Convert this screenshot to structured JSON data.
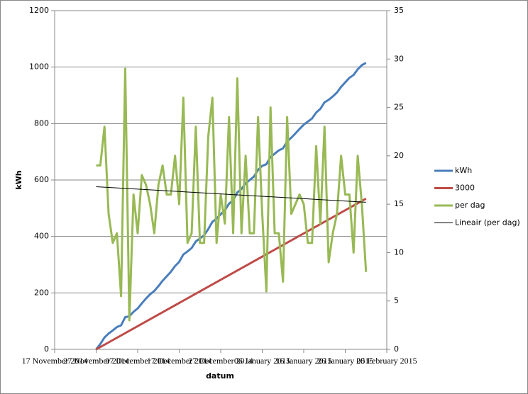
{
  "chart_data": {
    "type": "line",
    "y_label": "kWh",
    "x_label": "datum",
    "xlim": [
      "2014-11-17",
      "2015-02-05"
    ],
    "xticks": [
      {
        "value": "2014-11-17",
        "label": "17 November 2014"
      },
      {
        "value": "2014-11-27",
        "label": "27 November 2014"
      },
      {
        "value": "2014-12-07",
        "label": "07 December 2014"
      },
      {
        "value": "2014-12-17",
        "label": "17 December 2014"
      },
      {
        "value": "2014-12-27",
        "label": "27 December 2014"
      },
      {
        "value": "2015-01-06",
        "label": "06 January 2015"
      },
      {
        "value": "2015-01-16",
        "label": "16 January 2015"
      },
      {
        "value": "2015-01-26",
        "label": "26 January 2015"
      },
      {
        "value": "2015-02-05",
        "label": "05 February 2015"
      }
    ],
    "ylim": [
      0,
      1200
    ],
    "yticks": [
      0,
      200,
      400,
      600,
      800,
      1000,
      1200
    ],
    "y2lim": [
      0,
      35
    ],
    "y2ticks": [
      0,
      5,
      10,
      15,
      20,
      25,
      30,
      35
    ],
    "grid": true,
    "legend": "right",
    "x": [
      "2014-11-27",
      "2014-11-28",
      "2014-11-29",
      "2014-11-30",
      "2014-12-01",
      "2014-12-02",
      "2014-12-03",
      "2014-12-04",
      "2014-12-05",
      "2014-12-06",
      "2014-12-07",
      "2014-12-08",
      "2014-12-09",
      "2014-12-10",
      "2014-12-11",
      "2014-12-12",
      "2014-12-13",
      "2014-12-14",
      "2014-12-15",
      "2014-12-16",
      "2014-12-17",
      "2014-12-18",
      "2014-12-19",
      "2014-12-20",
      "2014-12-21",
      "2014-12-22",
      "2014-12-23",
      "2014-12-24",
      "2014-12-25",
      "2014-12-26",
      "2014-12-27",
      "2014-12-28",
      "2014-12-29",
      "2014-12-30",
      "2014-12-31",
      "2015-01-01",
      "2015-01-02",
      "2015-01-03",
      "2015-01-04",
      "2015-01-05",
      "2015-01-06",
      "2015-01-07",
      "2015-01-08",
      "2015-01-09",
      "2015-01-10",
      "2015-01-11",
      "2015-01-12",
      "2015-01-13",
      "2015-01-14",
      "2015-01-15",
      "2015-01-16",
      "2015-01-17",
      "2015-01-18",
      "2015-01-19",
      "2015-01-20",
      "2015-01-21",
      "2015-01-22",
      "2015-01-23",
      "2015-01-24",
      "2015-01-25",
      "2015-01-26",
      "2015-01-27",
      "2015-01-28",
      "2015-01-29",
      "2015-01-30",
      "2015-01-31"
    ],
    "series": [
      {
        "name": "kWh",
        "color": "#4a7ebb",
        "width": 3,
        "values": [
          0,
          19,
          42,
          56,
          67,
          79,
          85,
          114,
          117,
          133,
          145,
          163,
          180,
          195,
          207,
          224,
          243,
          259,
          275,
          295,
          310,
          336,
          347,
          359,
          382,
          393,
          404,
          426,
          452,
          463,
          479,
          492,
          516,
          528,
          556,
          568,
          588,
          600,
          612,
          636,
          650,
          656,
          681,
          693,
          705,
          712,
          736,
          750,
          765,
          781,
          796,
          807,
          818,
          839,
          852,
          875,
          884,
          896,
          910,
          930,
          946,
          962,
          972,
          992,
          1007,
          1015
        ]
      },
      {
        "name": "3000",
        "color": "#be4b48",
        "width": 3,
        "x": [
          "2014-11-27",
          "2015-01-31"
        ],
        "values": [
          0,
          534
        ]
      },
      {
        "name": "per dag",
        "color": "#98b954",
        "width": 3,
        "axis": "y2",
        "values": [
          19,
          19,
          23,
          14,
          11,
          12,
          5.5,
          29,
          3,
          16,
          12,
          18,
          17,
          15,
          12,
          17,
          19,
          16,
          16,
          20,
          15,
          26,
          11,
          12,
          23,
          11,
          11,
          22,
          26,
          11,
          16,
          13,
          24,
          12,
          28,
          12,
          20,
          12,
          12,
          24,
          14,
          6,
          25,
          12,
          12,
          7,
          24,
          14,
          15,
          16,
          15,
          11,
          11,
          21,
          13,
          23,
          9,
          12,
          14,
          20,
          16,
          16,
          10,
          20,
          15,
          8
        ]
      },
      {
        "name": "Lineair (per dag)",
        "color": "#000000",
        "width": 1,
        "axis": "y2",
        "x": [
          "2014-11-27",
          "2015-01-31"
        ],
        "values": [
          16.8,
          15.2
        ]
      }
    ]
  }
}
